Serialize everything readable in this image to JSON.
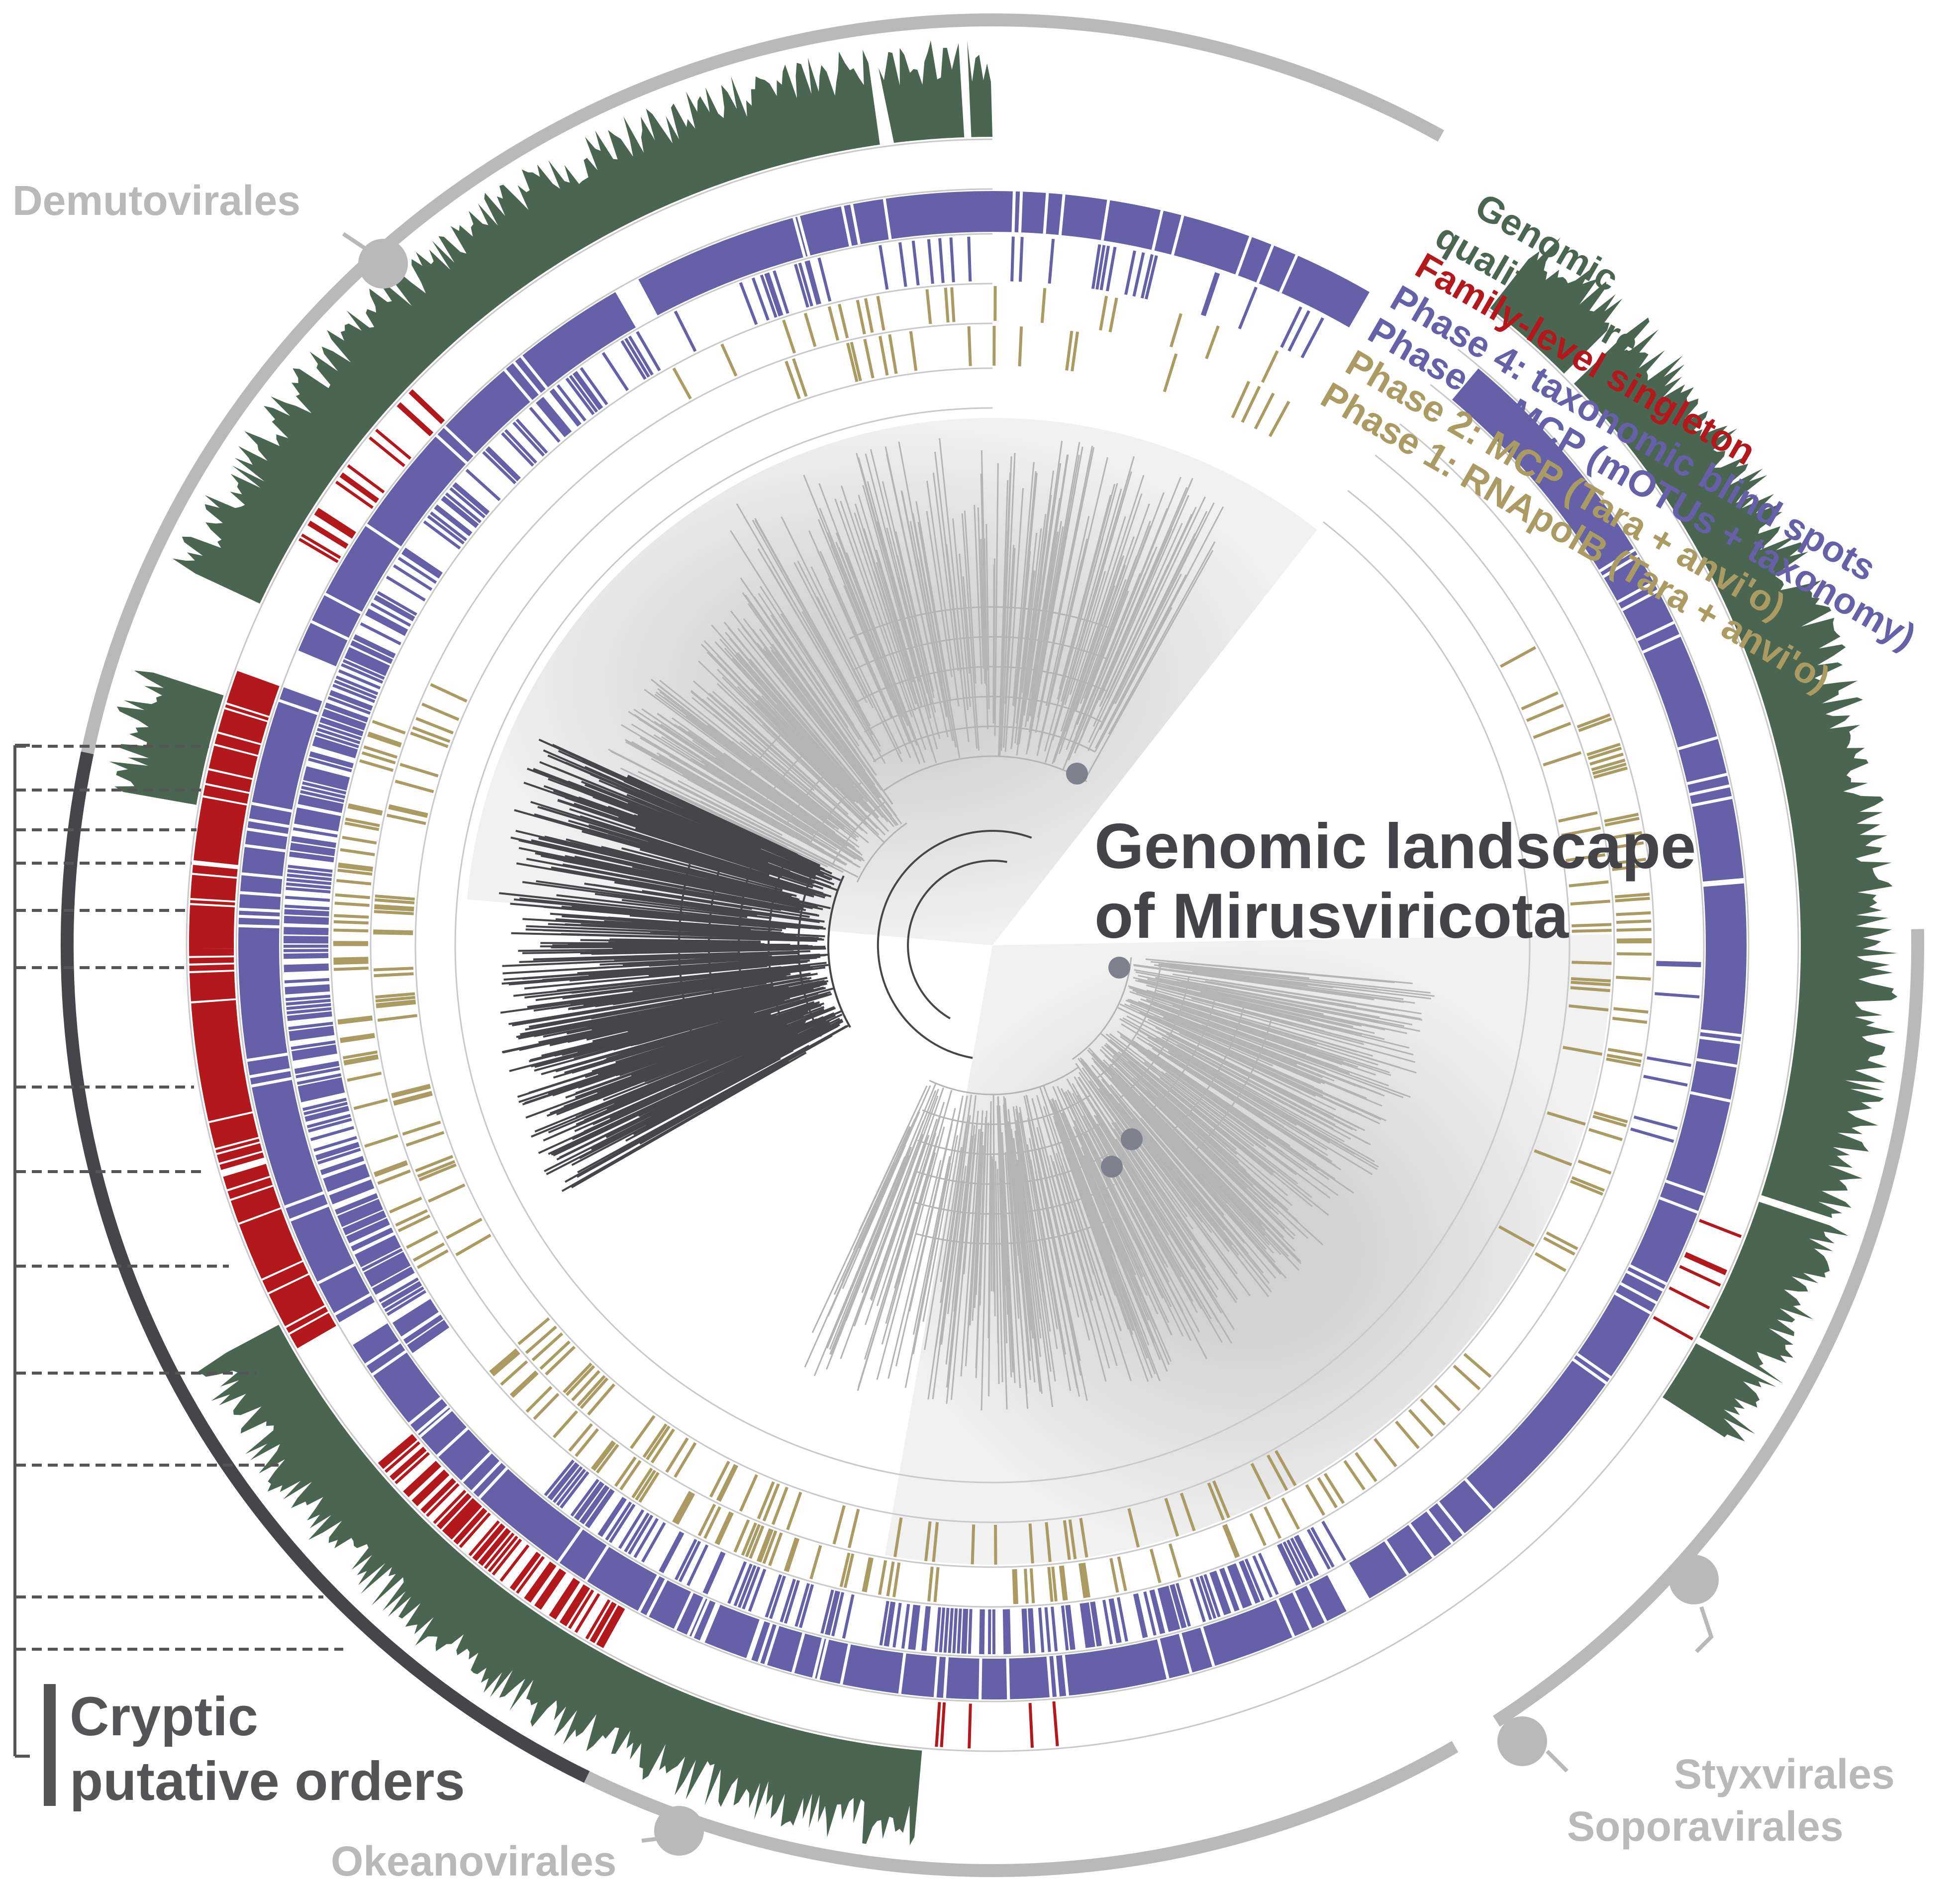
{
  "title": {
    "line1": "Genomic landscape",
    "line2": "of Mirusviricota"
  },
  "legend": [
    {
      "key": "genomic_quality_line1",
      "label": "Genomic",
      "color": "#4a6650"
    },
    {
      "key": "genomic_quality_line2",
      "label": "quality score",
      "color": "#4a6650"
    },
    {
      "key": "family_singleton",
      "label": "Family-level singleton",
      "color": "#b3191c"
    },
    {
      "key": "phase4",
      "label": "Phase 4: taxonomic blind spots",
      "color": "#6560a8"
    },
    {
      "key": "phase3",
      "label": "Phase 3: MCP (mOTUs + taxonomy)",
      "color": "#6560a8"
    },
    {
      "key": "phase2",
      "label": "Phase 2: MCP (Tara + anvi'o)",
      "color": "#a99b62"
    },
    {
      "key": "phase1",
      "label": "Phase 1: RNApolB (Tara + anvi'o)",
      "color": "#a99b62"
    }
  ],
  "orders": {
    "demutovirales": "Demutovirales",
    "okeanovirales": "Okeanovirales",
    "styxvirales": "Styxvirales",
    "soporavirales": "Soporavirales",
    "cryptic_line1": "Cryptic",
    "cryptic_line2": "putative orders"
  },
  "colors": {
    "green": "#4a6650",
    "purple": "#6560a8",
    "red": "#b3191c",
    "tan": "#a99b62",
    "dark": "#45454a",
    "order_gray": "#b9b9b9",
    "shade": "#dcdcdc"
  }
}
